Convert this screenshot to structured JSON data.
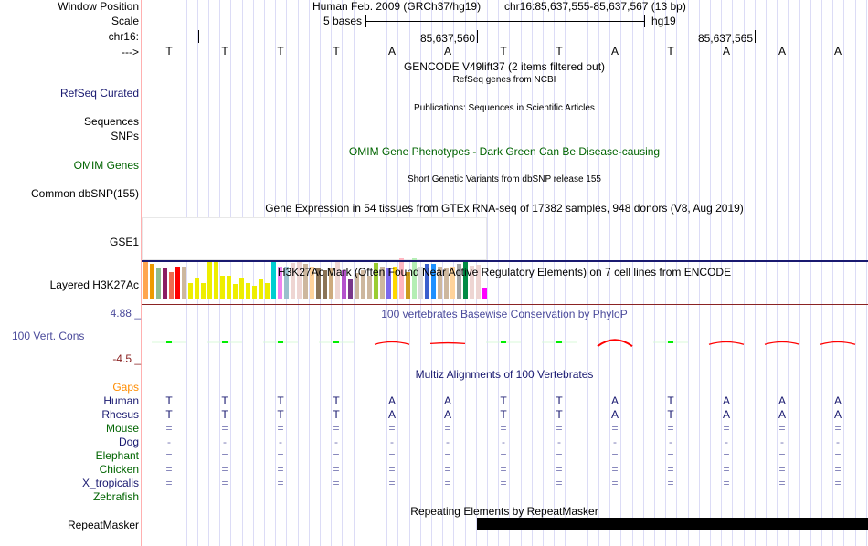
{
  "header": {
    "window_position_label": "Window Position",
    "assembly": "Human Feb. 2009 (GRCh37/hg19)",
    "position": "chr16:85,637,555-85,637,567 (13 bp)",
    "scale_label": "Scale",
    "scale_text": "5 bases",
    "scale_db": "hg19",
    "chrom_label": "chr16:",
    "tick_labels": [
      "85,637,560",
      "85,637,565"
    ],
    "strand_label": "--->"
  },
  "bases": [
    "T",
    "T",
    "T",
    "T",
    "A",
    "A",
    "T",
    "T",
    "A",
    "T",
    "A",
    "A",
    "A"
  ],
  "tracks": {
    "gencode_title": "GENCODE V49lift37 (2 items filtered out)",
    "refseq_title": "RefSeq genes from NCBI",
    "refseq_label": "RefSeq Curated",
    "pubs_title": "Publications: Sequences in Scientific Articles",
    "pubs_label": "Sequences",
    "snps_label": "SNPs",
    "omim_title": "OMIM Gene Phenotypes - Dark Green Can Be Disease-causing",
    "omim_label": "OMIM Genes",
    "dbsnp_title": "Short Genetic Variants from dbSNP release 155",
    "dbsnp_label": "Common dbSNP(155)",
    "gtex_title": "Gene Expression in 54 tissues from GTEx RNA-seq of 17382 samples, 948 donors (V8, Aug 2019)",
    "gtex_label": "GSE1",
    "h3k27_title": "H3K27Ac Mark (Often Found Near Active Regulatory Elements) on 7 cell lines from ENCODE",
    "h3k27_label": "Layered H3K27Ac",
    "cons_title": "100 vertebrates Basewise Conservation by PhyloP",
    "cons_label": "100 Vert. Cons",
    "cons_max": "4.88 _",
    "cons_min": "-4.5 _",
    "multiz_title": "Multiz Alignments of 100 Vertebrates",
    "gaps_label": "Gaps",
    "rmsk_title": "Repeating Elements by RepeatMasker",
    "rmsk_label": "RepeatMasker"
  },
  "gtex": {
    "colors": [
      "#FFA54F",
      "#EE9A00",
      "#8FBC8F",
      "#8B1C62",
      "#EE6A50",
      "#FF0000",
      "#CDB79E",
      "#EEEE00",
      "#EEEE00",
      "#EEEE00",
      "#EEEE00",
      "#EEEE00",
      "#EEEE00",
      "#EEEE00",
      "#EEEE00",
      "#EEEE00",
      "#EEEE00",
      "#EEEE00",
      "#EEEE00",
      "#EEEE00",
      "#00CED1",
      "#EE82EE",
      "#9AC0CD",
      "#EED5D2",
      "#EED5D2",
      "#CDB79E",
      "#FFD39B",
      "#8B7355",
      "#8B7355",
      "#CDAA7D",
      "#EED5D2",
      "#B452CD",
      "#7A378B",
      "#CDB79E",
      "#CDB79E",
      "#CDB79E",
      "#9ACD32",
      "#CDB79E",
      "#7B68EE",
      "#FFD700",
      "#FFB6C1",
      "#CD9B1D",
      "#B4EEB4",
      "#D9D9D9",
      "#3A5FCD",
      "#1E90FF",
      "#CDB79E",
      "#CDB79E",
      "#FFD39B",
      "#A6A6A6",
      "#008B45",
      "#EED5D2",
      "#EED5D2",
      "#FF00FF"
    ],
    "values": [
      91,
      87,
      77,
      75,
      66,
      79,
      81,
      39,
      52,
      39,
      93,
      93,
      58,
      58,
      37,
      52,
      39,
      33,
      48,
      39,
      91,
      81,
      81,
      89,
      93,
      87,
      81,
      75,
      72,
      77,
      91,
      72,
      48,
      64,
      72,
      58,
      89,
      79,
      77,
      79,
      100,
      66,
      100,
      79,
      87,
      87,
      79,
      77,
      81,
      87,
      95,
      83,
      85,
      29
    ]
  },
  "conservation": [
    {
      "type": "pos",
      "v": 0.1
    },
    {
      "type": "pos",
      "v": 0.1
    },
    {
      "type": "pos",
      "v": 0.1
    },
    {
      "type": "pos",
      "v": 0.1
    },
    {
      "type": "neg",
      "v": 0.35
    },
    {
      "type": "neg",
      "v": 0.1
    },
    {
      "type": "pos",
      "v": 0.1
    },
    {
      "type": "pos",
      "v": 0.1
    },
    {
      "type": "neg",
      "v": 0.9
    },
    {
      "type": "pos",
      "v": 0.1
    },
    {
      "type": "neg",
      "v": 0.35
    },
    {
      "type": "neg",
      "v": 0.35
    },
    {
      "type": "neg",
      "v": 0.35
    }
  ],
  "species": [
    {
      "name": "Human",
      "color": "#191970",
      "row": [
        "T",
        "T",
        "T",
        "T",
        "A",
        "A",
        "T",
        "T",
        "A",
        "T",
        "A",
        "A",
        "A"
      ]
    },
    {
      "name": "Rhesus",
      "color": "#191970",
      "row": [
        "T",
        "T",
        "T",
        "T",
        "A",
        "A",
        "T",
        "T",
        "A",
        "T",
        "A",
        "A",
        "A"
      ]
    },
    {
      "name": "Mouse",
      "color": "#006400",
      "row": [
        "=",
        "=",
        "=",
        "=",
        "=",
        "=",
        "=",
        "=",
        "=",
        "=",
        "=",
        "=",
        "="
      ]
    },
    {
      "name": "Dog",
      "color": "#191970",
      "row": [
        "-",
        "-",
        "-",
        "-",
        "-",
        "-",
        "-",
        "-",
        "-",
        "-",
        "-",
        "-",
        "-"
      ]
    },
    {
      "name": "Elephant",
      "color": "#006400",
      "row": [
        "=",
        "=",
        "=",
        "=",
        "=",
        "=",
        "=",
        "=",
        "=",
        "=",
        "=",
        "=",
        "="
      ]
    },
    {
      "name": "Chicken",
      "color": "#006400",
      "row": [
        "=",
        "=",
        "=",
        "=",
        "=",
        "=",
        "=",
        "=",
        "=",
        "=",
        "=",
        "=",
        "="
      ]
    },
    {
      "name": "X_tropicalis",
      "color": "#191970",
      "row": [
        "=",
        "=",
        "=",
        "=",
        "=",
        "=",
        "=",
        "=",
        "=",
        "=",
        "=",
        "=",
        "="
      ]
    },
    {
      "name": "Zebrafish",
      "color": "#006400",
      "row": [
        "",
        "",
        "",
        "",
        "",
        "",
        "",
        "",
        "",
        "",
        "",
        "",
        ""
      ]
    }
  ],
  "colors": {
    "navy": "#191970",
    "gaps": "#FF8C00",
    "cons_label": "#4B4B9B",
    "cons_min": "#8B2323"
  }
}
